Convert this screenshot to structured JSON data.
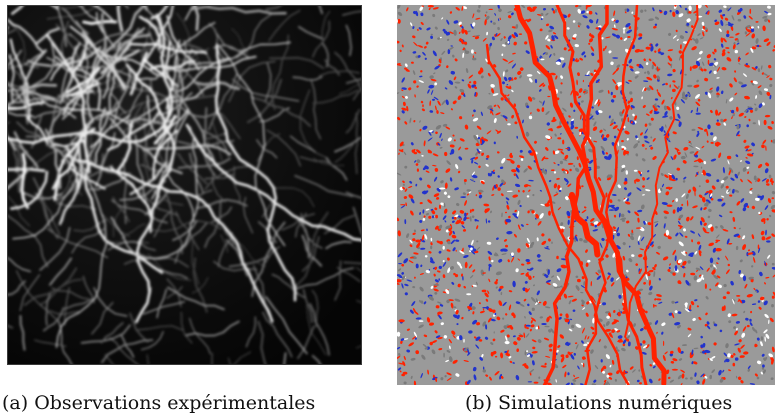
{
  "figure": {
    "panels": [
      {
        "id": "a",
        "caption": "(a) Observations expérimentales",
        "image_type": "grayscale micrograph of shear bands"
      },
      {
        "id": "b",
        "caption": "(b) Simulations numériques",
        "image_type": "simulated particle field with red strain localization bands"
      }
    ],
    "colors": {
      "micrograph_background": "#0b0b0b",
      "micrograph_bands": "#e8e8e8",
      "simulation_background": "#9a9a9a",
      "simulation_localization": "#ff2200",
      "simulation_blue_particles": "#2233cc"
    }
  }
}
